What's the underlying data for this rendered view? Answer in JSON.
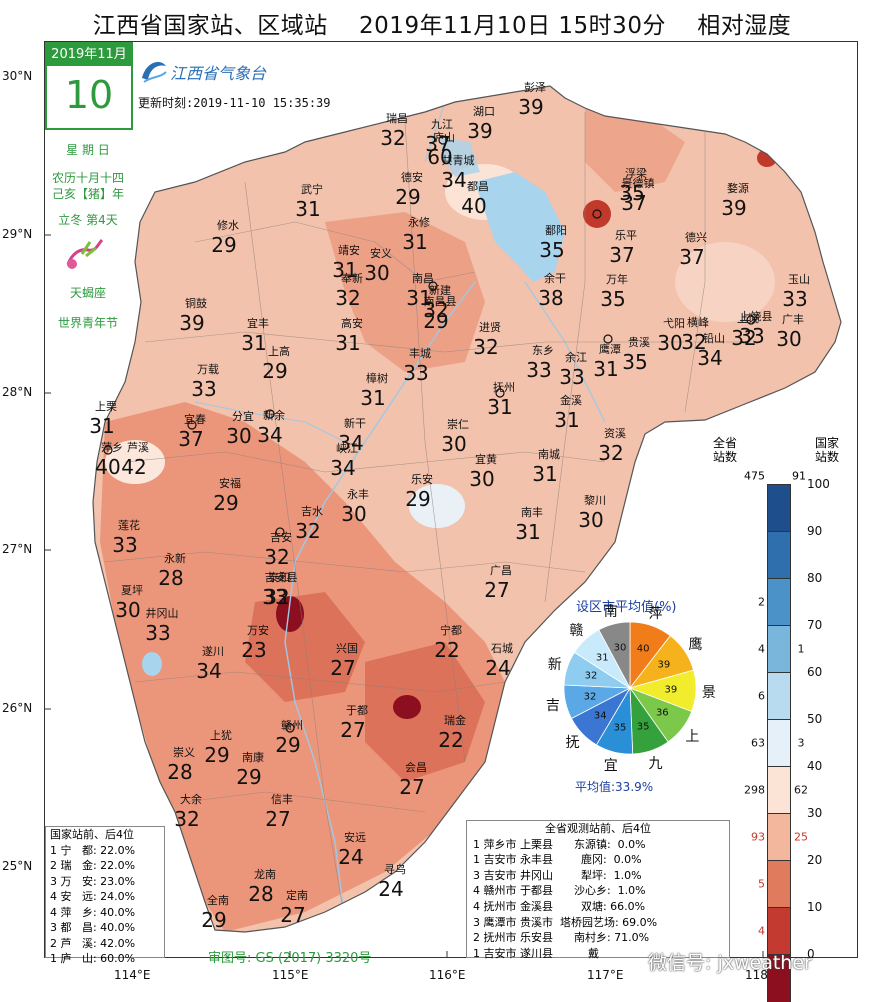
{
  "title": "江西省国家站、区域站    2019年11月10日 15时30分    相对湿度",
  "calendar": {
    "month": "2019年11月",
    "day": "10",
    "weekday": "星 期 日",
    "lunar": "农历十月十四",
    "year": "己亥【猪】年",
    "term": "立冬 第4天",
    "zodiac": "天蝎座",
    "festival": "世界青年节"
  },
  "logo_text": "江西省气象台",
  "update_time": "更新时刻:2019-11-10 15:35:39",
  "lat_labels": [
    "30°N",
    "29°N",
    "28°N",
    "27°N",
    "26°N",
    "25°N"
  ],
  "lon_labels": [
    "114°E",
    "115°E",
    "116°E",
    "117°E",
    "118°E"
  ],
  "colors": {
    "land_light": "#f2c2ac",
    "land_mid": "#e8876a",
    "land_dark": "#c0392b",
    "water": "#a8d4ee",
    "core": "#8b0f1e"
  },
  "stations": [
    {
      "name": "彭泽",
      "value": "39"
    },
    {
      "name": "瑞昌",
      "value": "32"
    },
    {
      "name": "九江",
      "value": "37"
    },
    {
      "name": "湖口",
      "value": "39"
    },
    {
      "name": "庐山",
      "value": "60"
    },
    {
      "name": "德安",
      "value": "29"
    },
    {
      "name": "都昌",
      "value": "40"
    },
    {
      "name": "共青城",
      "value": "34"
    },
    {
      "name": "浮梁",
      "value": "35"
    },
    {
      "name": "景德镇",
      "value": "37"
    },
    {
      "name": "婺源",
      "value": "39"
    },
    {
      "name": "武宁",
      "value": "31"
    },
    {
      "name": "修水",
      "value": "29"
    },
    {
      "name": "永修",
      "value": "31"
    },
    {
      "name": "鄱阳",
      "value": "35"
    },
    {
      "name": "乐平",
      "value": "37"
    },
    {
      "name": "德兴",
      "value": "37"
    },
    {
      "name": "靖安",
      "value": "31"
    },
    {
      "name": "安义",
      "value": "30"
    },
    {
      "name": "奉新",
      "value": "32"
    },
    {
      "name": "南昌",
      "value": "31"
    },
    {
      "name": "新建",
      "value": "32"
    },
    {
      "name": "南昌县",
      "value": "29"
    },
    {
      "name": "余干",
      "value": "38"
    },
    {
      "name": "万年",
      "value": "35"
    },
    {
      "name": "玉山",
      "value": "33"
    },
    {
      "name": "广丰",
      "value": "30"
    },
    {
      "name": "铜鼓",
      "value": "39"
    },
    {
      "name": "宜丰",
      "value": "31"
    },
    {
      "name": "高安",
      "value": "31"
    },
    {
      "name": "进贤",
      "value": "32"
    },
    {
      "name": "上饶",
      "value": "32"
    },
    {
      "name": "上饶县",
      "value": "33"
    },
    {
      "name": "铅山",
      "value": "34"
    },
    {
      "name": "横峰",
      "value": "32"
    },
    {
      "name": "弋阳",
      "value": "30"
    },
    {
      "name": "上高",
      "value": "29"
    },
    {
      "name": "丰城",
      "value": "33"
    },
    {
      "name": "东乡",
      "value": "33"
    },
    {
      "name": "鹰潭",
      "value": "31"
    },
    {
      "name": "余江",
      "value": "33"
    },
    {
      "name": "贵溪",
      "value": "35"
    },
    {
      "name": "万载",
      "value": "33"
    },
    {
      "name": "樟树",
      "value": "31"
    },
    {
      "name": "抚州",
      "value": "31"
    },
    {
      "name": "金溪",
      "value": "31"
    },
    {
      "name": "上栗",
      "value": "31"
    },
    {
      "name": "宜春",
      "value": "37"
    },
    {
      "name": "分宜",
      "value": "30"
    },
    {
      "name": "新余",
      "value": "34"
    },
    {
      "name": "新干",
      "value": "34"
    },
    {
      "name": "崇仁",
      "value": "30"
    },
    {
      "name": "资溪",
      "value": "32"
    },
    {
      "name": "萍乡",
      "value": "40"
    },
    {
      "name": "芦溪",
      "value": "42"
    },
    {
      "name": "峡江",
      "value": "34"
    },
    {
      "name": "宜黄",
      "value": "30"
    },
    {
      "name": "南城",
      "value": "31"
    },
    {
      "name": "安福",
      "value": "29"
    },
    {
      "name": "乐安",
      "value": "29"
    },
    {
      "name": "永丰",
      "value": "30"
    },
    {
      "name": "黎川",
      "value": "30"
    },
    {
      "name": "莲花",
      "value": "33"
    },
    {
      "name": "吉水",
      "value": "32"
    },
    {
      "name": "吉安",
      "value": "32"
    },
    {
      "name": "南丰",
      "value": "31"
    },
    {
      "name": "永新",
      "value": "28"
    },
    {
      "name": "吉安县",
      "value": "32"
    },
    {
      "name": "广昌",
      "value": "27"
    },
    {
      "name": "泰和",
      "value": "33"
    },
    {
      "name": "夏坪",
      "value": "30"
    },
    {
      "name": "井冈山",
      "value": "33"
    },
    {
      "name": "万安",
      "value": "23"
    },
    {
      "name": "遂川",
      "value": "34"
    },
    {
      "name": "兴国",
      "value": "27"
    },
    {
      "name": "宁都",
      "value": "22"
    },
    {
      "name": "石城",
      "value": "24"
    },
    {
      "name": "于都",
      "value": "27"
    },
    {
      "name": "瑞金",
      "value": "22"
    },
    {
      "name": "赣州",
      "value": "29"
    },
    {
      "name": "上犹",
      "value": "29"
    },
    {
      "name": "南康",
      "value": "29"
    },
    {
      "name": "崇义",
      "value": "28"
    },
    {
      "name": "会昌",
      "value": "27"
    },
    {
      "name": "大余",
      "value": "32"
    },
    {
      "name": "信丰",
      "value": "27"
    },
    {
      "name": "安远",
      "value": "24"
    },
    {
      "name": "寻乌",
      "value": "24"
    },
    {
      "name": "龙南",
      "value": "28"
    },
    {
      "name": "定南",
      "value": "27"
    },
    {
      "name": "全南",
      "value": "29"
    }
  ],
  "legend": {
    "header_left": "全省\n站数",
    "header_right": "国家\n站数",
    "total_left": "475",
    "total_right": "91",
    "ticks": [
      "100",
      "90",
      "80",
      "70",
      "60",
      "50",
      "40",
      "30",
      "20",
      "10",
      "0"
    ],
    "bins": [
      {
        "color": "#1f4e8c",
        "left": "",
        "right": ""
      },
      {
        "color": "#2f6fae",
        "left": "",
        "right": ""
      },
      {
        "color": "#4a92c8",
        "left": "2",
        "right": ""
      },
      {
        "color": "#7ab6dc",
        "left": "4",
        "right": "1"
      },
      {
        "color": "#b9dbef",
        "left": "6",
        "right": ""
      },
      {
        "color": "#e6f0f8",
        "left": "63",
        "right": "3"
      },
      {
        "color": "#fbe3d6",
        "left": "298",
        "right": "62"
      },
      {
        "color": "#f2b79c",
        "left": "93",
        "right": "25"
      },
      {
        "color": "#e07b5e",
        "left": "5",
        "right": ""
      },
      {
        "color": "#c23a30",
        "left": "4",
        "right": ""
      },
      {
        "color": "#8b0f1e",
        "left": "",
        "right": ""
      }
    ]
  },
  "pie": {
    "title": "设区市平均值(%)",
    "average": "平均值:33.9%",
    "slices": [
      {
        "city": "萍",
        "value": "40",
        "color": "#f07d1a"
      },
      {
        "city": "鹰",
        "value": "39",
        "color": "#f5b21d"
      },
      {
        "city": "景",
        "value": "39",
        "color": "#f1ec2c"
      },
      {
        "city": "上",
        "value": "36",
        "color": "#7cc84a"
      },
      {
        "city": "九",
        "value": "35",
        "color": "#35a13c"
      },
      {
        "city": "宜",
        "value": "35",
        "color": "#2a8fd6"
      },
      {
        "city": "抚",
        "value": "34",
        "color": "#3b76d2"
      },
      {
        "city": "吉",
        "value": "32",
        "color": "#5aa8e6"
      },
      {
        "city": "新",
        "value": "32",
        "color": "#8fcdf0"
      },
      {
        "city": "赣",
        "value": "31",
        "color": "#c9eafa"
      },
      {
        "city": "南",
        "value": "30",
        "color": "#888888"
      }
    ]
  },
  "national_table": {
    "header": "国家站前、后4位",
    "rows": [
      "1 宁   都: 22.0%",
      "2 瑞   金: 22.0%",
      "3 万   安: 23.0%",
      "4 安   远: 24.0%",
      "4 萍   乡: 40.0%",
      "3 都   昌: 40.0%",
      "2 芦   溪: 42.0%",
      "1 庐   山: 60.0%"
    ]
  },
  "all_table": {
    "header": "全省观测站前、后4位",
    "rows": [
      "1 萍乡市 上栗县      东源镇:  0.0%",
      "1 吉安市 永丰县        鹿冈:  0.0%",
      "3 吉安市 井冈山        犁坪:  1.0%",
      "4 赣州市 于都县      沙心乡:  1.0%",
      "4 抚州市 金溪县        双塘: 66.0%",
      "3 鹰潭市 贵溪市  塔桥园艺场: 69.0%",
      "2 抚州市 乐安县      南村乡: 71.0%",
      "1 吉安市 遂川县          戴"
    ]
  },
  "review_number": "审图号: GS (2017) 3320号",
  "wechat": "微信号: jxweather"
}
